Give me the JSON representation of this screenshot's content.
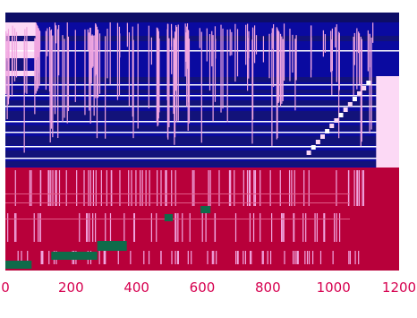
{
  "chart_data": {
    "type": "heatmap",
    "title": "",
    "xlabel": "",
    "ylabel": "",
    "xlim": [
      0,
      1200
    ],
    "x_ticks": [
      0,
      200,
      400,
      600,
      800,
      1000,
      1200
    ],
    "x_tick_labels": [
      "0",
      "200",
      "400",
      "600",
      "800",
      "1000",
      "1200"
    ],
    "grid": false,
    "colors": {
      "navy_band": "#0d0d66",
      "blue_fill": "#0a0aa0",
      "dark_blue": "#12127a",
      "pale_pink": "#fcd9f5",
      "crimson": "#b8003a",
      "green": "#0f6b4a",
      "stripe_light": "#f0a6e0",
      "tick_text": "#d6004f"
    },
    "regions": [
      {
        "name": "upper-block",
        "x_range": [
          0,
          1200
        ],
        "fill": "blue"
      },
      {
        "name": "lower-block",
        "x_range": [
          0,
          1200
        ],
        "fill": "crimson"
      }
    ],
    "green_segments": [
      {
        "x": [
          0,
          80
        ]
      },
      {
        "x": [
          140,
          240
        ]
      },
      {
        "x": [
          240,
          280
        ]
      },
      {
        "x": [
          280,
          370
        ]
      },
      {
        "x": [
          485,
          510
        ]
      },
      {
        "x": [
          595,
          625
        ]
      }
    ]
  }
}
